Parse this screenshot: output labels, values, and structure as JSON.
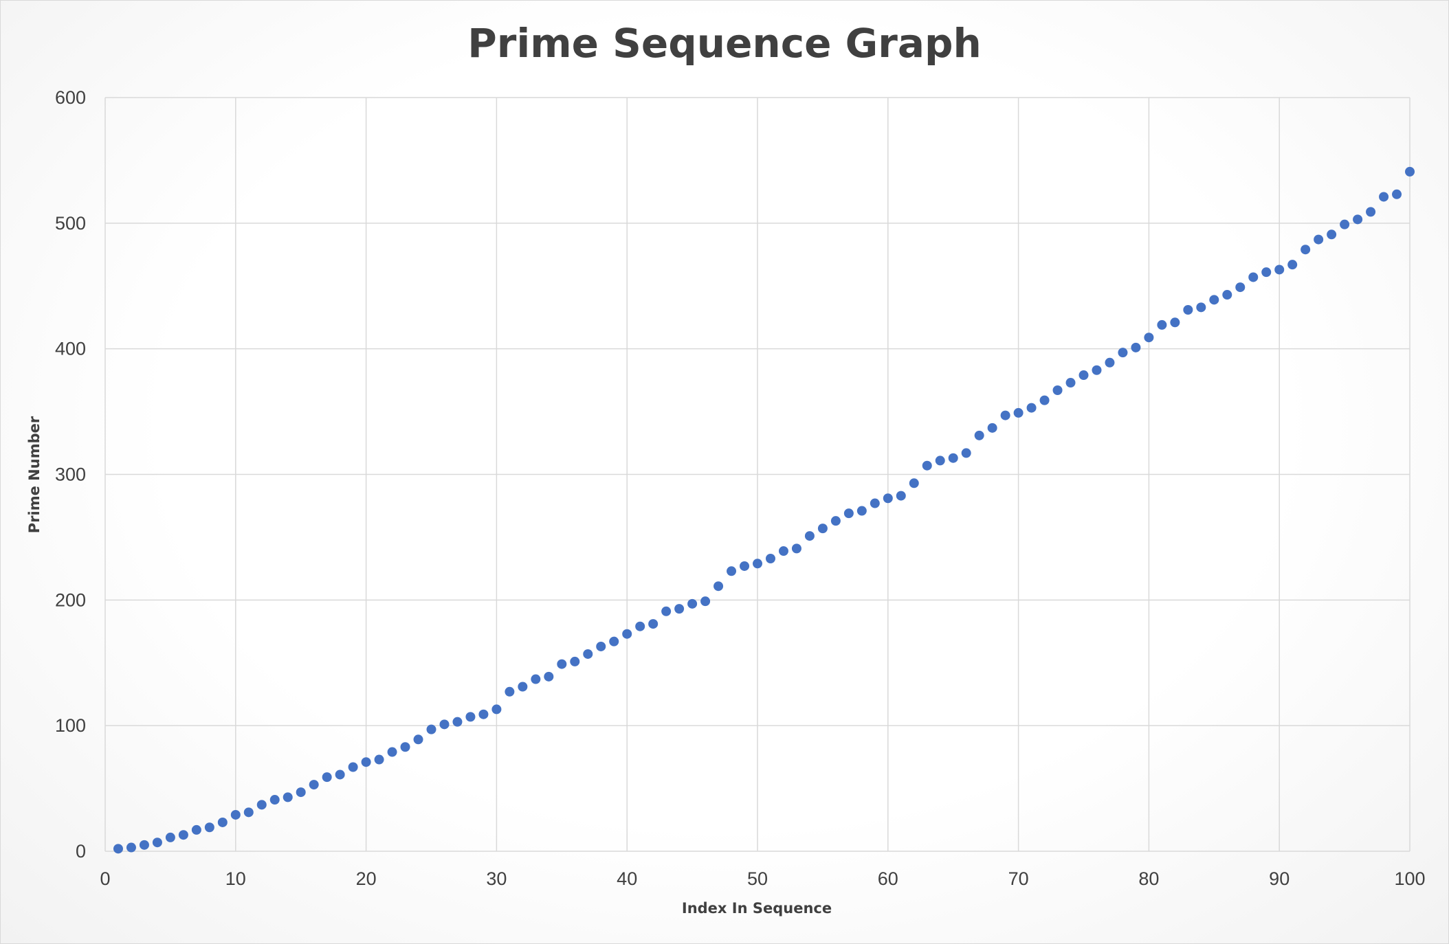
{
  "chart_data": {
    "type": "scatter",
    "title": "Prime Sequence Graph",
    "xlabel": "Index In Sequence",
    "ylabel": "Prime Number",
    "xlim": [
      0,
      100
    ],
    "ylim": [
      0,
      600
    ],
    "xticks": [
      0,
      10,
      20,
      30,
      40,
      50,
      60,
      70,
      80,
      90,
      100
    ],
    "yticks": [
      0,
      100,
      200,
      300,
      400,
      500,
      600
    ],
    "grid": true,
    "marker_color": "#4472c4",
    "series": [
      {
        "x": [
          1,
          2,
          3,
          4,
          5,
          6,
          7,
          8,
          9,
          10,
          11,
          12,
          13,
          14,
          15,
          16,
          17,
          18,
          19,
          20,
          21,
          22,
          23,
          24,
          25,
          26,
          27,
          28,
          29,
          30,
          31,
          32,
          33,
          34,
          35,
          36,
          37,
          38,
          39,
          40,
          41,
          42,
          43,
          44,
          45,
          46,
          47,
          48,
          49,
          50,
          51,
          52,
          53,
          54,
          55,
          56,
          57,
          58,
          59,
          60,
          61,
          62,
          63,
          64,
          65,
          66,
          67,
          68,
          69,
          70,
          71,
          72,
          73,
          74,
          75,
          76,
          77,
          78,
          79,
          80,
          81,
          82,
          83,
          84,
          85,
          86,
          87,
          88,
          89,
          90,
          91,
          92,
          93,
          94,
          95,
          96,
          97,
          98,
          99,
          100
        ],
        "y": [
          2,
          3,
          5,
          7,
          11,
          13,
          17,
          19,
          23,
          29,
          31,
          37,
          41,
          43,
          47,
          53,
          59,
          61,
          67,
          71,
          73,
          79,
          83,
          89,
          97,
          101,
          103,
          107,
          109,
          113,
          127,
          131,
          137,
          139,
          149,
          151,
          157,
          163,
          167,
          173,
          179,
          181,
          191,
          193,
          197,
          199,
          211,
          223,
          227,
          229,
          233,
          239,
          241,
          251,
          257,
          263,
          269,
          271,
          277,
          281,
          283,
          293,
          307,
          311,
          313,
          317,
          331,
          337,
          347,
          349,
          353,
          359,
          367,
          373,
          379,
          383,
          389,
          397,
          401,
          409,
          419,
          421,
          431,
          433,
          439,
          443,
          449,
          457,
          461,
          463,
          467,
          479,
          487,
          491,
          499,
          503,
          509,
          521,
          523,
          541
        ]
      }
    ]
  }
}
